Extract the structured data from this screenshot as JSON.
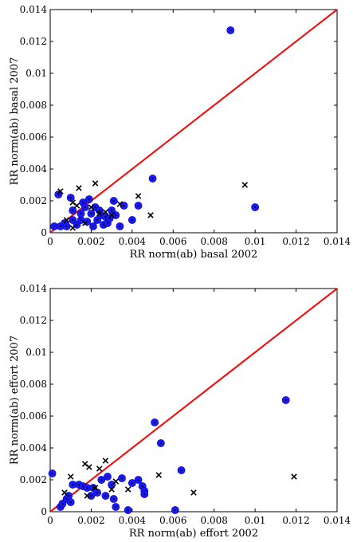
{
  "chart_data": [
    {
      "type": "scatter",
      "title": "",
      "xlabel": "RR norm(ab) basal 2002",
      "ylabel": "RR norm(ab) basal 2007",
      "xlim": [
        0,
        0.014
      ],
      "ylim": [
        0,
        0.014
      ],
      "xticks": [
        "0",
        "0.002",
        "0.004",
        "0.006",
        "0.008",
        "0.01",
        "0.012",
        "0.014"
      ],
      "yticks": [
        "0",
        "0.002",
        "0.004",
        "0.006",
        "0.008",
        "0.01",
        "0.012",
        "0.014"
      ],
      "grid": false,
      "legend": "none",
      "series": [
        {
          "marker": "filled-circle-with-dot",
          "color": "#1a1aff",
          "points": [
            [
              0.0002,
              0.0004
            ],
            [
              0.0004,
              0.0024
            ],
            [
              0.0005,
              0.0004
            ],
            [
              0.0007,
              0.0006
            ],
            [
              0.0008,
              0.0004
            ],
            [
              0.001,
              0.0022
            ],
            [
              0.0011,
              0.0008
            ],
            [
              0.0011,
              0.0014
            ],
            [
              0.0013,
              0.0005
            ],
            [
              0.0015,
              0.0008
            ],
            [
              0.0015,
              0.0012
            ],
            [
              0.0016,
              0.0019
            ],
            [
              0.0017,
              0.0016
            ],
            [
              0.0018,
              0.0007
            ],
            [
              0.0019,
              0.0021
            ],
            [
              0.002,
              0.0012
            ],
            [
              0.0021,
              0.0004
            ],
            [
              0.0022,
              0.0016
            ],
            [
              0.0023,
              0.0008
            ],
            [
              0.0024,
              0.0014
            ],
            [
              0.0025,
              0.0011
            ],
            [
              0.0026,
              0.0005
            ],
            [
              0.0027,
              0.001
            ],
            [
              0.0028,
              0.0006
            ],
            [
              0.0029,
              0.0009
            ],
            [
              0.003,
              0.0014
            ],
            [
              0.0031,
              0.002
            ],
            [
              0.0032,
              0.0011
            ],
            [
              0.0034,
              0.0004
            ],
            [
              0.0036,
              0.0017
            ],
            [
              0.004,
              0.0008
            ],
            [
              0.0043,
              0.0017
            ],
            [
              0.005,
              0.0034
            ],
            [
              0.0088,
              0.0127
            ],
            [
              0.01,
              0.0016
            ]
          ]
        },
        {
          "marker": "x",
          "color": "#000000",
          "points": [
            [
              0.0005,
              0.0026
            ],
            [
              0.0008,
              0.0008
            ],
            [
              0.0011,
              0.0003
            ],
            [
              0.0011,
              0.0019
            ],
            [
              0.0013,
              0.0017
            ],
            [
              0.0014,
              0.0028
            ],
            [
              0.0017,
              0.0006
            ],
            [
              0.002,
              0.0016
            ],
            [
              0.0022,
              0.0031
            ],
            [
              0.0024,
              0.0012
            ],
            [
              0.0027,
              0.0013
            ],
            [
              0.003,
              0.0011
            ],
            [
              0.0034,
              0.0018
            ],
            [
              0.0043,
              0.0023
            ],
            [
              0.0049,
              0.0011
            ],
            [
              0.0095,
              0.003
            ]
          ]
        },
        {
          "type": "line",
          "color": "#ff0000",
          "points": [
            [
              0,
              0
            ],
            [
              0.014,
              0.014
            ]
          ]
        }
      ]
    },
    {
      "type": "scatter",
      "title": "",
      "xlabel": "RR norm(ab) effort 2002",
      "ylabel": "RR norm(ab) effort 2007",
      "xlim": [
        0,
        0.014
      ],
      "ylim": [
        0,
        0.014
      ],
      "xticks": [
        "0",
        "0.002",
        "0.004",
        "0.006",
        "0.008",
        "0.01",
        "0.012",
        "0.014"
      ],
      "yticks": [
        "0",
        "0.002",
        "0.004",
        "0.006",
        "0.008",
        "0.01",
        "0.012",
        "0.014"
      ],
      "grid": false,
      "legend": "none",
      "series": [
        {
          "marker": "filled-circle-with-dot",
          "color": "#1a1aff",
          "points": [
            [
              0.0001,
              0.0024
            ],
            [
              0.0005,
              0.0003
            ],
            [
              0.0006,
              0.0005
            ],
            [
              0.0008,
              0.0008
            ],
            [
              0.0009,
              0.001
            ],
            [
              0.001,
              0.0006
            ],
            [
              0.0011,
              0.0017
            ],
            [
              0.0014,
              0.0017
            ],
            [
              0.0016,
              0.0016
            ],
            [
              0.0018,
              0.0015
            ],
            [
              0.002,
              0.001
            ],
            [
              0.0021,
              0.0015
            ],
            [
              0.0023,
              0.0012
            ],
            [
              0.0025,
              0.002
            ],
            [
              0.0027,
              0.001
            ],
            [
              0.0028,
              0.0022
            ],
            [
              0.003,
              0.0017
            ],
            [
              0.0031,
              0.0008
            ],
            [
              0.0032,
              0.0003
            ],
            [
              0.0035,
              0.0021
            ],
            [
              0.0038,
              0.0001
            ],
            [
              0.004,
              0.0018
            ],
            [
              0.0043,
              0.002
            ],
            [
              0.0045,
              0.0016
            ],
            [
              0.0046,
              0.0013
            ],
            [
              0.0046,
              0.0011
            ],
            [
              0.0051,
              0.0056
            ],
            [
              0.0054,
              0.0043
            ],
            [
              0.0061,
              0.0001
            ],
            [
              0.0064,
              0.0026
            ],
            [
              0.0115,
              0.007
            ]
          ]
        },
        {
          "marker": "x",
          "color": "#000000",
          "points": [
            [
              0.0007,
              0.0012
            ],
            [
              0.001,
              0.0022
            ],
            [
              0.0017,
              0.003
            ],
            [
              0.0018,
              0.001
            ],
            [
              0.0019,
              0.0028
            ],
            [
              0.0022,
              0.0015
            ],
            [
              0.0024,
              0.0027
            ],
            [
              0.0027,
              0.0032
            ],
            [
              0.003,
              0.0014
            ],
            [
              0.0032,
              0.0019
            ],
            [
              0.0038,
              0.0014
            ],
            [
              0.0053,
              0.0023
            ],
            [
              0.007,
              0.0012
            ],
            [
              0.0119,
              0.0022
            ]
          ]
        },
        {
          "type": "line",
          "color": "#ff0000",
          "points": [
            [
              0,
              0
            ],
            [
              0.014,
              0.014
            ]
          ]
        }
      ]
    }
  ]
}
